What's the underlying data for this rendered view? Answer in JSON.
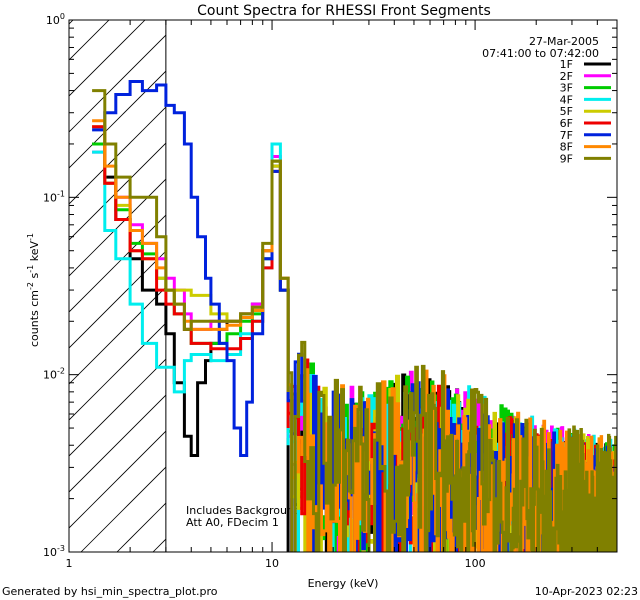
{
  "chart_data": {
    "type": "line",
    "title": "Count Spectra for RHESSI Front Segments",
    "date": "27-Mar-2005",
    "time_range": "07:41:00 to 07:42:00",
    "xlabel": "Energy (keV)",
    "ylabel_base": "counts cm",
    "ylabel_units": [
      "-2",
      " s",
      "-1",
      " keV",
      "-1"
    ],
    "xscale": "log",
    "yscale": "log",
    "xlim": [
      1,
      500
    ],
    "ylim": [
      0.001,
      1
    ],
    "x_ticks": [
      {
        "value": 1,
        "label": "1"
      },
      {
        "value": 10,
        "label": "10"
      },
      {
        "value": 100,
        "label": "100"
      }
    ],
    "y_ticks": [
      {
        "value": 0.001,
        "base": "10",
        "exp": "-3"
      },
      {
        "value": 0.01,
        "base": "10",
        "exp": "-2"
      },
      {
        "value": 0.1,
        "base": "10",
        "exp": "-1"
      },
      {
        "value": 1,
        "base": "10",
        "exp": "0"
      }
    ],
    "shaded_region": {
      "x_from": 1,
      "x_to": 3,
      "style": "diagonal hatch",
      "meaning": "excluded low-energy range"
    },
    "annotations": [
      "Includes Background",
      "Att A0, FDecim 1"
    ],
    "footer_left": "Generated by hsi_min_spectra_plot.pro",
    "footer_right": "10-Apr-2023 02:23",
    "legend_position": "top-right",
    "series": [
      {
        "name": "1F",
        "color": "#000000",
        "offset": 1.0,
        "low": [
          [
            1.3,
            0.2
          ],
          [
            1.5,
            0.13
          ],
          [
            1.7,
            0.075
          ],
          [
            2.0,
            0.045
          ],
          [
            2.3,
            0.03
          ],
          [
            2.7,
            0.025
          ],
          [
            3.0,
            0.017
          ],
          [
            3.3,
            0.009
          ],
          [
            3.7,
            0.0045
          ],
          [
            4.0,
            0.0035
          ],
          [
            4.3,
            0.009
          ],
          [
            4.7,
            0.012
          ],
          [
            5.0,
            0.015
          ],
          [
            5.5,
            0.018
          ],
          [
            6.0,
            0.02
          ],
          [
            7.0,
            0.022
          ],
          [
            8.0,
            0.025
          ],
          [
            9.0,
            0.05
          ],
          [
            10.0,
            0.15
          ],
          [
            11.0,
            0.03
          ],
          [
            12.0,
            0.003
          ]
        ]
      },
      {
        "name": "2F",
        "color": "#ff00ff",
        "offset": 1.1,
        "low": [
          [
            1.3,
            0.18
          ],
          [
            1.5,
            0.12
          ],
          [
            1.7,
            0.1
          ],
          [
            2.0,
            0.07
          ],
          [
            2.3,
            0.055
          ],
          [
            2.7,
            0.045
          ],
          [
            3.0,
            0.035
          ],
          [
            3.3,
            0.03
          ],
          [
            3.7,
            0.022
          ],
          [
            4.0,
            0.018
          ],
          [
            5.0,
            0.02
          ],
          [
            6.0,
            0.02
          ],
          [
            7.0,
            0.022
          ],
          [
            8.0,
            0.025
          ],
          [
            9.0,
            0.05
          ],
          [
            10.0,
            0.17
          ],
          [
            11.0,
            0.035
          ],
          [
            12.0,
            0.008
          ]
        ]
      },
      {
        "name": "3F",
        "color": "#00cc00",
        "offset": 1.05,
        "low": [
          [
            1.3,
            0.2
          ],
          [
            1.5,
            0.12
          ],
          [
            1.7,
            0.085
          ],
          [
            2.0,
            0.055
          ],
          [
            2.3,
            0.048
          ],
          [
            2.7,
            0.035
          ],
          [
            3.0,
            0.03
          ],
          [
            3.3,
            0.022
          ],
          [
            3.7,
            0.018
          ],
          [
            4.0,
            0.015
          ],
          [
            5.0,
            0.015
          ],
          [
            6.0,
            0.017
          ],
          [
            7.0,
            0.02
          ],
          [
            8.0,
            0.022
          ],
          [
            9.0,
            0.045
          ],
          [
            10.0,
            0.16
          ],
          [
            11.0,
            0.03
          ],
          [
            12.0,
            0.007
          ]
        ]
      },
      {
        "name": "4F",
        "color": "#00eeee",
        "offset": 1.1,
        "low": [
          [
            1.3,
            0.18
          ],
          [
            1.5,
            0.065
          ],
          [
            1.7,
            0.045
          ],
          [
            2.0,
            0.025
          ],
          [
            2.3,
            0.015
          ],
          [
            2.7,
            0.011
          ],
          [
            3.0,
            0.011
          ],
          [
            3.3,
            0.008
          ],
          [
            3.7,
            0.012
          ],
          [
            4.0,
            0.013
          ],
          [
            5.0,
            0.012
          ],
          [
            6.0,
            0.013
          ],
          [
            7.0,
            0.017
          ],
          [
            8.0,
            0.02
          ],
          [
            9.0,
            0.04
          ],
          [
            10.0,
            0.2
          ],
          [
            11.0,
            0.03
          ],
          [
            12.0,
            0.004
          ]
        ]
      },
      {
        "name": "5F",
        "color": "#cccc00",
        "offset": 1.05,
        "low": [
          [
            1.3,
            0.25
          ],
          [
            1.5,
            0.12
          ],
          [
            1.7,
            0.09
          ],
          [
            2.0,
            0.05
          ],
          [
            2.3,
            0.045
          ],
          [
            2.7,
            0.035
          ],
          [
            3.0,
            0.03
          ],
          [
            3.3,
            0.03
          ],
          [
            3.7,
            0.03
          ],
          [
            4.0,
            0.028
          ],
          [
            5.0,
            0.022
          ],
          [
            6.0,
            0.02
          ],
          [
            7.0,
            0.022
          ],
          [
            8.0,
            0.024
          ],
          [
            9.0,
            0.05
          ],
          [
            10.0,
            0.15
          ],
          [
            11.0,
            0.035
          ],
          [
            12.0,
            0.01
          ]
        ]
      },
      {
        "name": "6F",
        "color": "#ee0000",
        "offset": 0.95,
        "low": [
          [
            1.3,
            0.25
          ],
          [
            1.5,
            0.12
          ],
          [
            1.7,
            0.075
          ],
          [
            2.0,
            0.05
          ],
          [
            2.3,
            0.045
          ],
          [
            2.7,
            0.03
          ],
          [
            3.0,
            0.025
          ],
          [
            3.3,
            0.022
          ],
          [
            3.7,
            0.018
          ],
          [
            4.0,
            0.015
          ],
          [
            5.0,
            0.014
          ],
          [
            6.0,
            0.014
          ],
          [
            7.0,
            0.016
          ],
          [
            8.0,
            0.02
          ],
          [
            9.0,
            0.04
          ],
          [
            10.0,
            0.14
          ],
          [
            11.0,
            0.03
          ],
          [
            12.0,
            0.005
          ]
        ]
      },
      {
        "name": "7F",
        "color": "#0022dd",
        "offset": 1.0,
        "low": [
          [
            1.3,
            0.24
          ],
          [
            1.5,
            0.3
          ],
          [
            1.7,
            0.38
          ],
          [
            2.0,
            0.45
          ],
          [
            2.3,
            0.4
          ],
          [
            2.7,
            0.43
          ],
          [
            3.0,
            0.33
          ],
          [
            3.3,
            0.3
          ],
          [
            3.7,
            0.2
          ],
          [
            4.0,
            0.1
          ],
          [
            4.3,
            0.06
          ],
          [
            4.7,
            0.035
          ],
          [
            5.0,
            0.025
          ],
          [
            5.5,
            0.015
          ],
          [
            6.0,
            0.012
          ],
          [
            6.5,
            0.005
          ],
          [
            7.0,
            0.0035
          ],
          [
            7.5,
            0.007
          ],
          [
            8.0,
            0.017
          ],
          [
            9.0,
            0.045
          ],
          [
            10.0,
            0.14
          ],
          [
            11.0,
            0.03
          ],
          [
            12.0,
            0.012
          ]
        ]
      },
      {
        "name": "8F",
        "color": "#ff8800",
        "offset": 1.1,
        "low": [
          [
            1.3,
            0.27
          ],
          [
            1.5,
            0.15
          ],
          [
            1.7,
            0.1
          ],
          [
            2.0,
            0.065
          ],
          [
            2.3,
            0.055
          ],
          [
            2.7,
            0.04
          ],
          [
            3.0,
            0.03
          ],
          [
            3.3,
            0.025
          ],
          [
            3.7,
            0.02
          ],
          [
            4.0,
            0.018
          ],
          [
            5.0,
            0.018
          ],
          [
            6.0,
            0.019
          ],
          [
            7.0,
            0.021
          ],
          [
            8.0,
            0.023
          ],
          [
            9.0,
            0.05
          ],
          [
            10.0,
            0.16
          ],
          [
            11.0,
            0.035
          ],
          [
            12.0,
            0.008
          ]
        ]
      },
      {
        "name": "9F",
        "color": "#808000",
        "offset": 1.15,
        "low": [
          [
            1.3,
            0.4
          ],
          [
            1.5,
            0.2
          ],
          [
            1.7,
            0.13
          ],
          [
            2.0,
            0.1
          ],
          [
            2.3,
            0.1
          ],
          [
            2.7,
            0.06
          ],
          [
            3.0,
            0.03
          ],
          [
            3.3,
            0.025
          ],
          [
            3.7,
            0.018
          ],
          [
            4.0,
            0.02
          ],
          [
            5.0,
            0.02
          ],
          [
            6.0,
            0.02
          ],
          [
            7.0,
            0.022
          ],
          [
            8.0,
            0.024
          ],
          [
            9.0,
            0.055
          ],
          [
            10.0,
            0.16
          ],
          [
            11.0,
            0.035
          ],
          [
            12.0,
            0.008
          ]
        ]
      }
    ],
    "high_energy_profile": [
      [
        12,
        0.006
      ],
      [
        15,
        0.004
      ],
      [
        20,
        0.0028
      ],
      [
        30,
        0.0025
      ],
      [
        40,
        0.0032
      ],
      [
        50,
        0.0035
      ],
      [
        70,
        0.003
      ],
      [
        100,
        0.0025
      ],
      [
        150,
        0.002
      ],
      [
        200,
        0.0017
      ],
      [
        300,
        0.0015
      ],
      [
        400,
        0.0014
      ],
      [
        500,
        0.0013
      ]
    ]
  }
}
